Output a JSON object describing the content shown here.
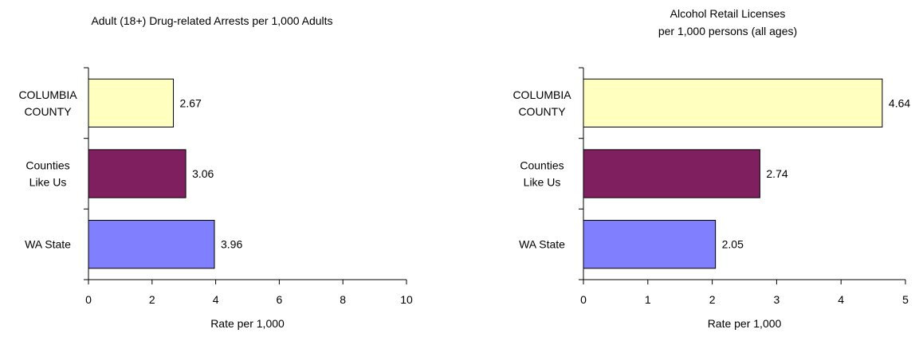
{
  "chart_data": [
    {
      "type": "bar",
      "orientation": "horizontal",
      "title": [
        "Adult (18+) Drug-related Arrests per 1,000 Adults"
      ],
      "xlabel": "Rate per 1,000",
      "ylabel": "",
      "xlim": [
        0,
        10
      ],
      "ticks": [
        "0",
        "2",
        "4",
        "6",
        "8",
        "10"
      ],
      "categories": [
        [
          "COLUMBIA",
          "COUNTY"
        ],
        [
          "Counties",
          "Like Us"
        ],
        [
          "WA State"
        ]
      ],
      "values": [
        2.67,
        3.06,
        3.96
      ],
      "value_labels": [
        "2.67",
        "3.06",
        "3.96"
      ],
      "colors": [
        "#ffffc0",
        "#7f1f5f",
        "#8080ff"
      ],
      "grid": false,
      "legend": "none"
    },
    {
      "type": "bar",
      "orientation": "horizontal",
      "title": [
        "Alcohol Retail Licenses",
        "per 1,000 persons (all ages)"
      ],
      "xlabel": "Rate per 1,000",
      "ylabel": "",
      "xlim": [
        0,
        5
      ],
      "ticks": [
        "0",
        "1",
        "2",
        "3",
        "4",
        "5"
      ],
      "categories": [
        [
          "COLUMBIA",
          "COUNTY"
        ],
        [
          "Counties",
          "Like Us"
        ],
        [
          "WA State"
        ]
      ],
      "values": [
        4.64,
        2.74,
        2.05
      ],
      "value_labels": [
        "4.64",
        "2.74",
        "2.05"
      ],
      "colors": [
        "#ffffc0",
        "#7f1f5f",
        "#8080ff"
      ],
      "grid": false,
      "legend": "none"
    }
  ]
}
